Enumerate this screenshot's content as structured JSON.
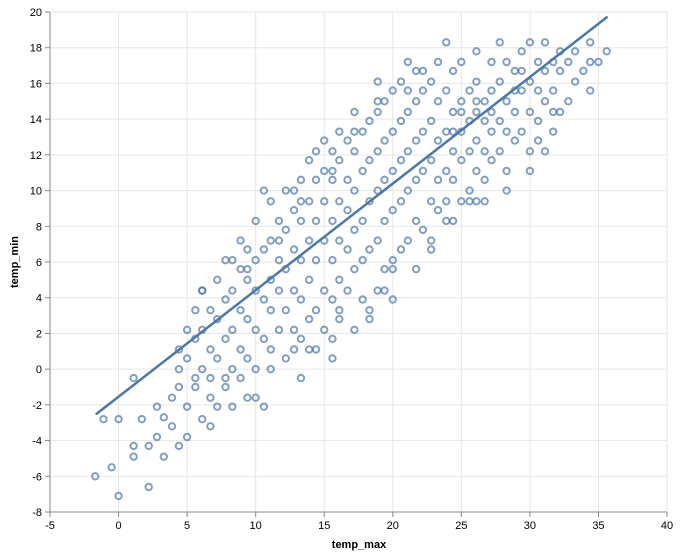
{
  "chart_data": {
    "type": "scatter",
    "title": "",
    "xlabel": "temp_max",
    "ylabel": "temp_min",
    "xlim": [
      -5,
      40
    ],
    "ylim": [
      -8,
      20
    ],
    "x_ticks": [
      -5,
      0,
      5,
      10,
      15,
      20,
      25,
      30,
      35,
      40
    ],
    "y_ticks": [
      -8,
      -6,
      -4,
      -2,
      0,
      2,
      4,
      6,
      8,
      10,
      12,
      14,
      16,
      18,
      20
    ],
    "grid": true,
    "legend": "none",
    "colors": {
      "point": "#4c78a8",
      "line": "#4c78a8"
    },
    "regression_line": {
      "x": [
        -1.6,
        35.6
      ],
      "y": [
        -2.5,
        19.7
      ]
    },
    "series": [
      {
        "points": [
          [
            -1.7,
            -6.0
          ],
          [
            -1.1,
            -2.8
          ],
          [
            -0.5,
            -5.5
          ],
          [
            0.0,
            -7.1
          ],
          [
            0.0,
            -2.8
          ],
          [
            1.1,
            -4.3
          ],
          [
            1.1,
            -4.9
          ],
          [
            1.1,
            -0.5
          ],
          [
            1.7,
            -2.8
          ],
          [
            2.2,
            -4.3
          ],
          [
            2.2,
            -6.6
          ],
          [
            2.8,
            -2.1
          ],
          [
            2.8,
            -3.8
          ],
          [
            3.3,
            -4.9
          ],
          [
            3.3,
            -2.7
          ],
          [
            3.9,
            -1.6
          ],
          [
            3.9,
            -3.2
          ],
          [
            4.4,
            -1.0
          ],
          [
            4.4,
            -4.3
          ],
          [
            4.4,
            1.1
          ],
          [
            5.0,
            -2.1
          ],
          [
            5.0,
            0.6
          ],
          [
            5.0,
            2.2
          ],
          [
            5.0,
            -3.8
          ],
          [
            5.6,
            -1.0
          ],
          [
            5.6,
            1.7
          ],
          [
            5.6,
            3.3
          ],
          [
            6.1,
            -2.8
          ],
          [
            6.1,
            0.0
          ],
          [
            6.1,
            2.2
          ],
          [
            6.1,
            4.4
          ],
          [
            6.7,
            -1.6
          ],
          [
            6.7,
            1.1
          ],
          [
            6.7,
            3.3
          ],
          [
            6.7,
            -3.2
          ],
          [
            7.2,
            0.6
          ],
          [
            7.2,
            2.8
          ],
          [
            7.2,
            5.0
          ],
          [
            7.2,
            -2.1
          ],
          [
            7.8,
            -1.0
          ],
          [
            7.8,
            1.7
          ],
          [
            7.8,
            3.9
          ],
          [
            7.8,
            6.1
          ],
          [
            8.3,
            0.0
          ],
          [
            8.3,
            2.2
          ],
          [
            8.3,
            4.4
          ],
          [
            8.3,
            -2.1
          ],
          [
            8.9,
            1.1
          ],
          [
            8.9,
            3.3
          ],
          [
            8.9,
            5.6
          ],
          [
            8.9,
            7.2
          ],
          [
            9.4,
            -1.6
          ],
          [
            9.4,
            0.6
          ],
          [
            9.4,
            2.8
          ],
          [
            9.4,
            5.0
          ],
          [
            9.4,
            6.7
          ],
          [
            10.0,
            0.0
          ],
          [
            10.0,
            2.2
          ],
          [
            10.0,
            4.4
          ],
          [
            10.0,
            6.1
          ],
          [
            10.0,
            8.3
          ],
          [
            10.6,
            -2.1
          ],
          [
            10.6,
            1.7
          ],
          [
            10.6,
            3.9
          ],
          [
            10.6,
            6.7
          ],
          [
            10.6,
            10.0
          ],
          [
            11.1,
            1.1
          ],
          [
            11.1,
            3.3
          ],
          [
            11.1,
            5.0
          ],
          [
            11.1,
            7.2
          ],
          [
            11.1,
            9.4
          ],
          [
            11.7,
            2.2
          ],
          [
            11.7,
            4.4
          ],
          [
            11.7,
            6.1
          ],
          [
            11.7,
            8.3
          ],
          [
            12.2,
            0.6
          ],
          [
            12.2,
            3.3
          ],
          [
            12.2,
            5.6
          ],
          [
            12.2,
            7.8
          ],
          [
            12.2,
            10.0
          ],
          [
            12.8,
            2.2
          ],
          [
            12.8,
            4.4
          ],
          [
            12.8,
            6.7
          ],
          [
            12.8,
            8.9
          ],
          [
            13.3,
            -0.5
          ],
          [
            13.3,
            1.7
          ],
          [
            13.3,
            3.9
          ],
          [
            13.3,
            6.1
          ],
          [
            13.3,
            8.3
          ],
          [
            13.3,
            10.6
          ],
          [
            13.9,
            2.8
          ],
          [
            13.9,
            5.0
          ],
          [
            13.9,
            7.2
          ],
          [
            13.9,
            9.4
          ],
          [
            13.9,
            11.7
          ],
          [
            14.4,
            1.1
          ],
          [
            14.4,
            3.3
          ],
          [
            14.4,
            6.1
          ],
          [
            14.4,
            8.3
          ],
          [
            14.4,
            10.6
          ],
          [
            15.0,
            2.2
          ],
          [
            15.0,
            4.4
          ],
          [
            15.0,
            7.2
          ],
          [
            15.0,
            9.4
          ],
          [
            15.0,
            11.1
          ],
          [
            15.0,
            12.8
          ],
          [
            15.6,
            0.6
          ],
          [
            15.6,
            3.9
          ],
          [
            15.6,
            6.1
          ],
          [
            15.6,
            8.3
          ],
          [
            15.6,
            10.6
          ],
          [
            15.6,
            12.2
          ],
          [
            16.1,
            2.8
          ],
          [
            16.1,
            5.0
          ],
          [
            16.1,
            7.2
          ],
          [
            16.1,
            9.4
          ],
          [
            16.1,
            11.7
          ],
          [
            16.1,
            13.3
          ],
          [
            16.7,
            4.4
          ],
          [
            16.7,
            6.7
          ],
          [
            16.7,
            8.9
          ],
          [
            16.7,
            10.6
          ],
          [
            16.7,
            12.8
          ],
          [
            17.2,
            2.2
          ],
          [
            17.2,
            5.6
          ],
          [
            17.2,
            7.8
          ],
          [
            17.2,
            10.0
          ],
          [
            17.2,
            12.2
          ],
          [
            17.2,
            14.4
          ],
          [
            17.8,
            3.9
          ],
          [
            17.8,
            6.1
          ],
          [
            17.8,
            8.3
          ],
          [
            17.8,
            11.1
          ],
          [
            17.8,
            13.3
          ],
          [
            18.3,
            2.8
          ],
          [
            18.3,
            6.7
          ],
          [
            18.3,
            9.4
          ],
          [
            18.3,
            11.7
          ],
          [
            18.3,
            13.9
          ],
          [
            18.9,
            4.4
          ],
          [
            18.9,
            7.2
          ],
          [
            18.9,
            10.0
          ],
          [
            18.9,
            12.2
          ],
          [
            18.9,
            14.4
          ],
          [
            18.9,
            16.1
          ],
          [
            19.4,
            5.6
          ],
          [
            19.4,
            8.3
          ],
          [
            19.4,
            10.6
          ],
          [
            19.4,
            12.8
          ],
          [
            19.4,
            15.0
          ],
          [
            20.0,
            3.9
          ],
          [
            20.0,
            6.1
          ],
          [
            20.0,
            8.9
          ],
          [
            20.0,
            11.1
          ],
          [
            20.0,
            13.3
          ],
          [
            20.0,
            15.6
          ],
          [
            20.6,
            6.7
          ],
          [
            20.6,
            9.4
          ],
          [
            20.6,
            11.7
          ],
          [
            20.6,
            13.9
          ],
          [
            20.6,
            16.1
          ],
          [
            21.1,
            7.2
          ],
          [
            21.1,
            10.0
          ],
          [
            21.1,
            12.2
          ],
          [
            21.1,
            14.4
          ],
          [
            21.1,
            17.2
          ],
          [
            21.7,
            8.3
          ],
          [
            21.7,
            10.6
          ],
          [
            21.7,
            12.8
          ],
          [
            21.7,
            15.0
          ],
          [
            21.7,
            16.7
          ],
          [
            22.2,
            7.8
          ],
          [
            22.2,
            11.1
          ],
          [
            22.2,
            13.3
          ],
          [
            22.2,
            15.6
          ],
          [
            22.8,
            6.7
          ],
          [
            22.8,
            9.4
          ],
          [
            22.8,
            11.7
          ],
          [
            22.8,
            13.9
          ],
          [
            22.8,
            16.1
          ],
          [
            23.3,
            8.9
          ],
          [
            23.3,
            10.6
          ],
          [
            23.3,
            12.8
          ],
          [
            23.3,
            15.0
          ],
          [
            23.3,
            17.2
          ],
          [
            23.9,
            9.4
          ],
          [
            23.9,
            11.1
          ],
          [
            23.9,
            13.3
          ],
          [
            23.9,
            15.6
          ],
          [
            23.9,
            18.3
          ],
          [
            24.4,
            8.3
          ],
          [
            24.4,
            10.6
          ],
          [
            24.4,
            12.2
          ],
          [
            24.4,
            14.4
          ],
          [
            24.4,
            16.7
          ],
          [
            25.0,
            9.4
          ],
          [
            25.0,
            11.7
          ],
          [
            25.0,
            13.3
          ],
          [
            25.0,
            15.0
          ],
          [
            25.0,
            17.2
          ],
          [
            25.6,
            10.0
          ],
          [
            25.6,
            12.2
          ],
          [
            25.6,
            13.9
          ],
          [
            25.6,
            15.6
          ],
          [
            26.1,
            9.4
          ],
          [
            26.1,
            11.1
          ],
          [
            26.1,
            12.8
          ],
          [
            26.1,
            14.4
          ],
          [
            26.1,
            16.1
          ],
          [
            26.1,
            17.8
          ],
          [
            26.7,
            10.6
          ],
          [
            26.7,
            12.2
          ],
          [
            26.7,
            13.9
          ],
          [
            26.7,
            15.0
          ],
          [
            27.2,
            11.7
          ],
          [
            27.2,
            13.3
          ],
          [
            27.2,
            15.6
          ],
          [
            27.2,
            17.2
          ],
          [
            27.8,
            12.2
          ],
          [
            27.8,
            13.9
          ],
          [
            27.8,
            16.1
          ],
          [
            27.8,
            18.3
          ],
          [
            28.3,
            11.1
          ],
          [
            28.3,
            13.3
          ],
          [
            28.3,
            15.0
          ],
          [
            28.3,
            17.2
          ],
          [
            28.9,
            12.8
          ],
          [
            28.9,
            14.4
          ],
          [
            28.9,
            16.7
          ],
          [
            29.4,
            13.3
          ],
          [
            29.4,
            15.6
          ],
          [
            29.4,
            17.8
          ],
          [
            30.0,
            12.2
          ],
          [
            30.0,
            14.4
          ],
          [
            30.0,
            16.1
          ],
          [
            30.0,
            18.3
          ],
          [
            30.6,
            13.9
          ],
          [
            30.6,
            15.6
          ],
          [
            30.6,
            17.2
          ],
          [
            31.1,
            15.0
          ],
          [
            31.1,
            16.7
          ],
          [
            31.1,
            18.3
          ],
          [
            31.7,
            13.3
          ],
          [
            31.7,
            15.6
          ],
          [
            31.7,
            17.2
          ],
          [
            32.2,
            14.4
          ],
          [
            32.2,
            16.7
          ],
          [
            32.2,
            17.8
          ],
          [
            32.8,
            15.0
          ],
          [
            32.8,
            17.2
          ],
          [
            33.3,
            16.1
          ],
          [
            33.3,
            17.8
          ],
          [
            33.9,
            16.7
          ],
          [
            34.4,
            15.6
          ],
          [
            34.4,
            17.2
          ],
          [
            34.4,
            18.3
          ],
          [
            35.0,
            17.2
          ],
          [
            35.6,
            17.8
          ],
          [
            6.1,
            4.4
          ],
          [
            8.3,
            6.1
          ],
          [
            12.8,
            10.0
          ],
          [
            14.4,
            12.2
          ],
          [
            9.4,
            5.6
          ],
          [
            11.7,
            7.2
          ],
          [
            13.3,
            9.4
          ],
          [
            15.6,
            11.1
          ],
          [
            17.2,
            13.3
          ],
          [
            18.9,
            15.0
          ],
          [
            21.1,
            15.6
          ],
          [
            22.2,
            16.7
          ],
          [
            24.4,
            13.3
          ],
          [
            25.0,
            14.4
          ],
          [
            26.1,
            15.0
          ],
          [
            27.2,
            14.4
          ],
          [
            28.9,
            15.6
          ],
          [
            29.4,
            16.7
          ],
          [
            30.6,
            12.8
          ],
          [
            31.7,
            14.4
          ],
          [
            4.4,
            0.0
          ],
          [
            5.6,
            -0.5
          ],
          [
            6.7,
            -0.5
          ],
          [
            7.8,
            -0.5
          ],
          [
            8.9,
            -0.5
          ],
          [
            10.0,
            -1.6
          ],
          [
            11.1,
            0.0
          ],
          [
            12.8,
            1.1
          ],
          [
            13.9,
            1.1
          ],
          [
            15.6,
            1.7
          ],
          [
            16.1,
            3.3
          ],
          [
            18.3,
            3.3
          ],
          [
            19.4,
            4.4
          ],
          [
            20.0,
            5.6
          ],
          [
            21.7,
            5.6
          ],
          [
            22.8,
            7.2
          ],
          [
            23.9,
            8.3
          ],
          [
            25.6,
            9.4
          ],
          [
            26.7,
            9.4
          ],
          [
            28.3,
            10.0
          ],
          [
            30.0,
            11.1
          ],
          [
            31.1,
            12.2
          ]
        ]
      }
    ]
  }
}
